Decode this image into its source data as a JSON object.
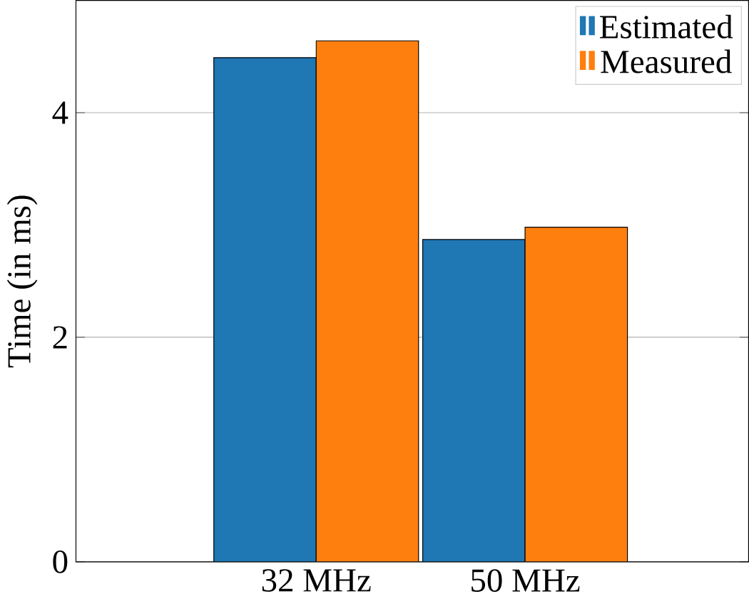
{
  "chart_data": {
    "type": "bar",
    "ylabel": "Time (in ms)",
    "categories": [
      "32 MHz",
      "50 MHz"
    ],
    "series": [
      {
        "name": "Estimated",
        "color": "#1f77b4",
        "values": [
          4.49,
          2.87
        ]
      },
      {
        "name": "Measured",
        "color": "#ff7f0e",
        "values": [
          4.64,
          2.98
        ]
      }
    ],
    "ylim": [
      0,
      5
    ],
    "yticks": [
      0,
      2,
      4
    ],
    "grid": "y",
    "legend": "top right"
  }
}
